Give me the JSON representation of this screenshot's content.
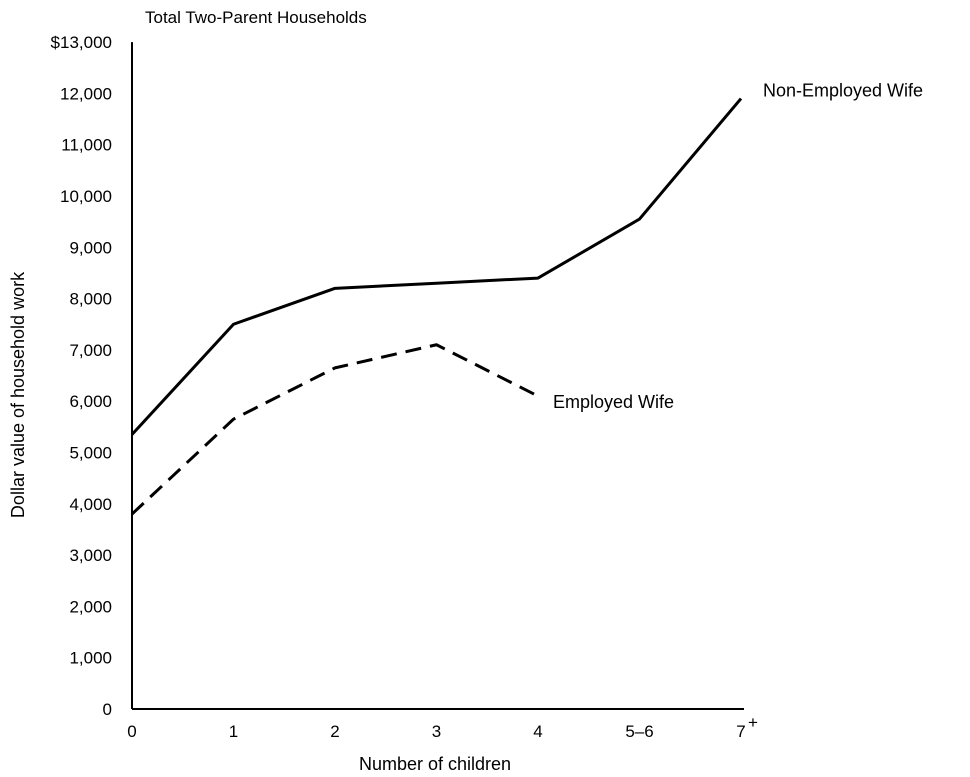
{
  "chart_data": {
    "type": "line",
    "title": "Total Two-Parent Households",
    "xlabel": "Number of children",
    "ylabel": "Dollar value of household work",
    "categories": [
      "0",
      "1",
      "2",
      "3",
      "4",
      "5–6",
      "7"
    ],
    "last_category_suffix": "+",
    "yticks": [
      "0",
      "1,000",
      "2,000",
      "3,000",
      "4,000",
      "5,000",
      "6,000",
      "7,000",
      "8,000",
      "9,000",
      "10,000",
      "11,000",
      "12,000",
      "$13,000"
    ],
    "ylim": [
      0,
      13000
    ],
    "grid": false,
    "series": [
      {
        "name": "Non-Employed Wife",
        "style": "solid",
        "values": [
          5350,
          7500,
          8200,
          8300,
          8400,
          9550,
          11900
        ]
      },
      {
        "name": "Employed Wife",
        "style": "dashed",
        "values": [
          3800,
          5650,
          6650,
          7100,
          6100,
          null,
          null
        ]
      }
    ]
  }
}
